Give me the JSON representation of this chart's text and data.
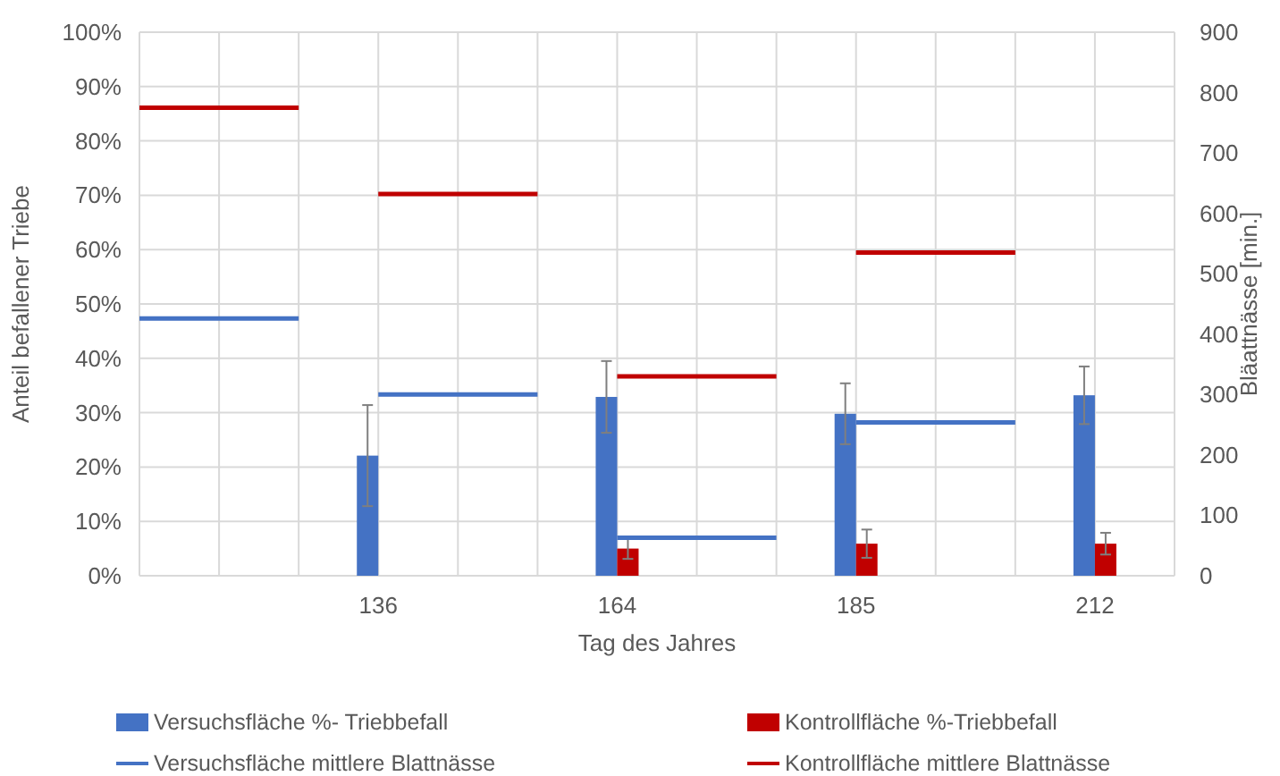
{
  "chart_data": {
    "type": "bar",
    "xlabel": "Tag des Jahres",
    "ylabel": "Anteil befallener Triebe",
    "y2label": "Bläattnässe [min.]",
    "categories": [
      null,
      null,
      null,
      null,
      null,
      null,
      "136",
      null,
      null,
      null,
      null,
      null,
      "164",
      null,
      null,
      null,
      null,
      null,
      "185",
      null,
      null,
      null,
      null,
      null,
      "212",
      null,
      null
    ],
    "series": [
      {
        "name": "Versuchsfläche %- Triebbefall",
        "color": "#4472c4",
        "values": [
          null,
          null,
          null,
          null,
          null,
          null,
          22.1,
          null,
          null,
          null,
          null,
          null,
          32.9,
          null,
          null,
          null,
          null,
          null,
          29.8,
          null,
          null,
          null,
          null,
          null,
          33.2,
          null,
          null
        ],
        "errors": [
          null,
          null,
          null,
          null,
          null,
          null,
          9.3,
          null,
          null,
          null,
          null,
          null,
          6.6,
          null,
          null,
          null,
          null,
          null,
          5.6,
          null,
          null,
          null,
          null,
          null,
          5.3,
          null,
          null
        ]
      },
      {
        "name": "Kontrollfläche %-Triebbefall",
        "color": "#c00000",
        "values": [
          null,
          null,
          null,
          null,
          null,
          null,
          null,
          null,
          null,
          null,
          null,
          null,
          5.0,
          null,
          null,
          null,
          null,
          null,
          5.9,
          null,
          null,
          null,
          null,
          null,
          5.9,
          null,
          null
        ],
        "errors": [
          null,
          null,
          null,
          null,
          null,
          null,
          null,
          null,
          null,
          null,
          null,
          null,
          1.9,
          null,
          null,
          null,
          null,
          null,
          2.6,
          null,
          null,
          null,
          null,
          null,
          2.0,
          null,
          null
        ]
      },
      {
        "name": "Versuchsfläche mittlere Blattnässe",
        "type": "line",
        "axis": "y2",
        "color": "#4472c4",
        "values": [
          426,
          426,
          426,
          426,
          426,
          null,
          300,
          300,
          300,
          300,
          300,
          null,
          63,
          63,
          63,
          63,
          63,
          null,
          254,
          254,
          254,
          254,
          254,
          null,
          null,
          null,
          null
        ]
      },
      {
        "name": "Kontrollfläche mittlere Blattnässe",
        "type": "line",
        "axis": "y2",
        "color": "#c00000",
        "values": [
          775,
          775,
          775,
          775,
          775,
          null,
          632,
          632,
          632,
          632,
          632,
          null,
          330,
          330,
          330,
          330,
          330,
          null,
          535,
          535,
          535,
          535,
          535,
          null,
          null,
          null,
          null
        ]
      }
    ],
    "ylim": [
      0,
      100
    ],
    "yticks": [
      {
        "value": 0,
        "label": "0%"
      },
      {
        "value": 10,
        "label": "10%"
      },
      {
        "value": 20,
        "label": "20%"
      },
      {
        "value": 30,
        "label": "30%"
      },
      {
        "value": 40,
        "label": "40%"
      },
      {
        "value": 50,
        "label": "50%"
      },
      {
        "value": 60,
        "label": "60%"
      },
      {
        "value": 70,
        "label": "70%"
      },
      {
        "value": 80,
        "label": "80%"
      },
      {
        "value": 90,
        "label": "90%"
      },
      {
        "value": 100,
        "label": "100%"
      }
    ],
    "y2lim": [
      0,
      900
    ],
    "y2ticks": [
      0,
      100,
      200,
      300,
      400,
      500,
      600,
      700,
      800,
      900
    ],
    "grid": true,
    "legend": "bottom"
  }
}
